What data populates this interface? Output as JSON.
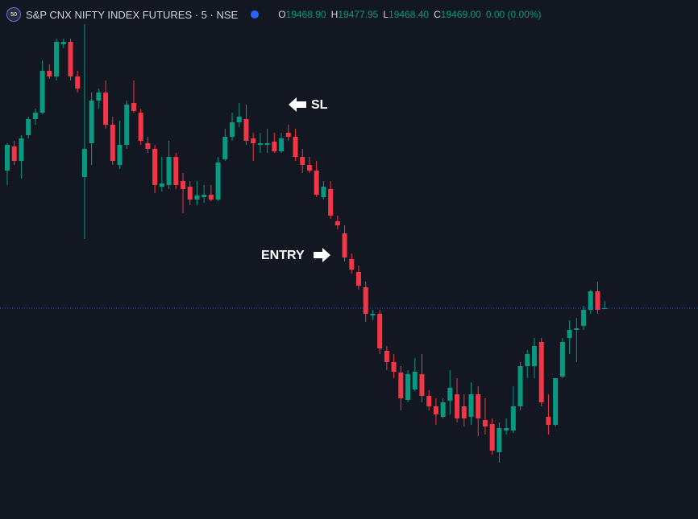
{
  "header": {
    "badge": "50",
    "symbol": "S&P CNX NIFTY INDEX FUTURES · 5 · NSE",
    "ohlc": [
      {
        "key": "O",
        "value": "19468.90"
      },
      {
        "key": "H",
        "value": "19477.95"
      },
      {
        "key": "L",
        "value": "19468.40"
      },
      {
        "key": "C",
        "value": "19469.00"
      }
    ],
    "change": "0.00 (0.00%)"
  },
  "chart_data": {
    "type": "candlestick",
    "open": [
      19640,
      19670,
      19652,
      19684,
      19704,
      19712,
      19764,
      19757,
      19797,
      19800,
      19757,
      19632,
      19674,
      19727,
      19737,
      19697,
      19647,
      19672,
      19724,
      19712,
      19674,
      19667,
      19620,
      19622,
      19657,
      19627,
      19620,
      19604,
      19607,
      19610,
      19604,
      19654,
      19682,
      19700,
      19704,
      19680,
      19672,
      19672,
      19676,
      19664,
      19687,
      19682,
      19657,
      19647,
      19640,
      19607,
      19617,
      19577,
      19562,
      19530,
      19514,
      19495,
      19460,
      19462,
      19416,
      19402,
      19389,
      19355,
      19368,
      19387,
      19360,
      19347,
      19334,
      19354,
      19362,
      19347,
      19334,
      19362,
      19330,
      19325,
      19290,
      19317,
      19317,
      19347,
      19397,
      19397,
      19427,
      19334,
      19324,
      19384,
      19432,
      19442,
      19447,
      19467,
      19490,
      19468.9
    ],
    "high": [
      19674,
      19677,
      19684,
      19707,
      19717,
      19777,
      19772,
      19804,
      19804,
      19804,
      19764,
      19822,
      19737,
      19742,
      19752,
      19707,
      19702,
      19727,
      19752,
      19717,
      19682,
      19672,
      19657,
      19677,
      19662,
      19637,
      19627,
      19627,
      19622,
      19622,
      19657,
      19692,
      19712,
      19724,
      19722,
      19687,
      19687,
      19692,
      19687,
      19687,
      19697,
      19692,
      19667,
      19657,
      19652,
      19627,
      19627,
      19584,
      19572,
      19537,
      19522,
      19502,
      19467,
      19467,
      19422,
      19412,
      19397,
      19392,
      19407,
      19412,
      19367,
      19357,
      19357,
      19392,
      19382,
      19362,
      19377,
      19372,
      19357,
      19332,
      19327,
      19332,
      19372,
      19402,
      19417,
      19432,
      19432,
      19362,
      19382,
      19432,
      19454,
      19457,
      19472,
      19492,
      19502,
      19477.95
    ],
    "low": [
      19622,
      19647,
      19630,
      19680,
      19697,
      19710,
      19754,
      19752,
      19792,
      19752,
      19737,
      19555,
      19647,
      19717,
      19692,
      19647,
      19642,
      19667,
      19712,
      19672,
      19662,
      19612,
      19614,
      19617,
      19617,
      19587,
      19597,
      19597,
      19600,
      19602,
      19602,
      19652,
      19677,
      19694,
      19672,
      19652,
      19662,
      19662,
      19662,
      19662,
      19677,
      19652,
      19637,
      19637,
      19607,
      19604,
      19580,
      19567,
      19527,
      19512,
      19492,
      19452,
      19454,
      19412,
      19392,
      19382,
      19342,
      19352,
      19366,
      19352,
      19342,
      19324,
      19332,
      19337,
      19327,
      19322,
      19324,
      19310,
      19312,
      19287,
      19277,
      19312,
      19314,
      19342,
      19382,
      19382,
      19347,
      19312,
      19322,
      19382,
      19412,
      19402,
      19442,
      19462,
      19462,
      19468.4
    ],
    "close": [
      19672,
      19652,
      19680,
      19704,
      19712,
      19764,
      19757,
      19800,
      19800,
      19757,
      19742,
      19667,
      19727,
      19737,
      19697,
      19652,
      19672,
      19722,
      19714,
      19677,
      19667,
      19622,
      19624,
      19657,
      19622,
      19617,
      19604,
      19609,
      19610,
      19604,
      19650,
      19682,
      19700,
      19707,
      19677,
      19674,
      19674,
      19674,
      19664,
      19680,
      19682,
      19657,
      19647,
      19640,
      19610,
      19620,
      19584,
      19572,
      19532,
      19517,
      19497,
      19462,
      19462,
      19419,
      19402,
      19390,
      19357,
      19387,
      19390,
      19360,
      19347,
      19337,
      19352,
      19370,
      19332,
      19332,
      19362,
      19332,
      19322,
      19292,
      19320,
      19320,
      19347,
      19397,
      19412,
      19422,
      19352,
      19324,
      19382,
      19427,
      19442,
      19444,
      19467,
      19490,
      19467,
      19469
    ],
    "ylim": [
      19207,
      19852
    ],
    "up_color": "#089981",
    "down_color": "#f23645",
    "annotations": [
      "SL",
      "ENTRY"
    ]
  }
}
